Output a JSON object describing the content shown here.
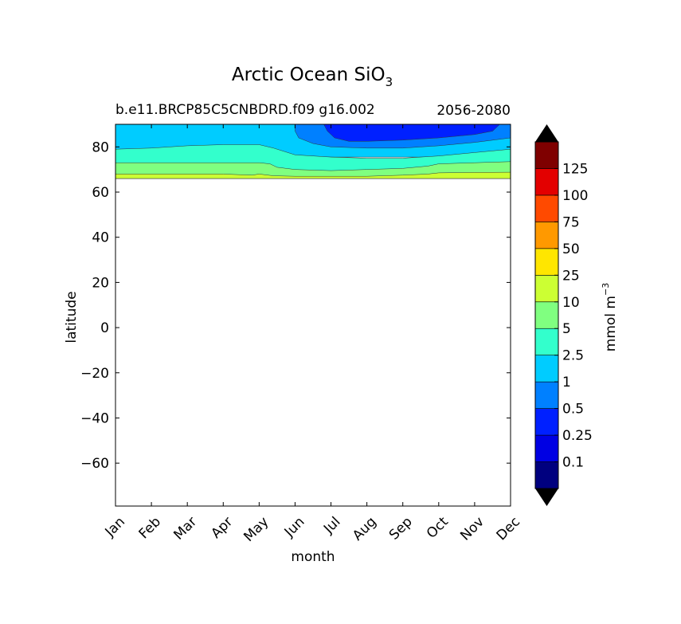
{
  "chart_data": {
    "type": "contour",
    "title": "Arctic Ocean SiO",
    "title_subscript": "3",
    "subtitle_left": "b.e11.BRCP85C5CNBDRD.f09 g16.002",
    "subtitle_right": "2056-2080",
    "xlabel": "month",
    "ylabel": "latitude",
    "months": [
      "Jan",
      "Feb",
      "Mar",
      "Apr",
      "May",
      "Jun",
      "Jul",
      "Aug",
      "Sep",
      "Oct",
      "Nov",
      "Dec"
    ],
    "ylim": [
      -79,
      90
    ],
    "yticks": [
      "80",
      "60",
      "40",
      "20",
      "0",
      "−20",
      "−40",
      "−60"
    ],
    "ytick_values": [
      80,
      60,
      40,
      20,
      0,
      -20,
      -40,
      -60
    ],
    "grid": false,
    "colorbar": {
      "label": "mmol m",
      "label_superscript": "−3",
      "extend": "both",
      "tick_labels": [
        "0.1",
        "0.25",
        "0.5",
        "1",
        "2.5",
        "5",
        "10",
        "25",
        "50",
        "75",
        "100",
        "125"
      ],
      "colors": [
        "#00007f",
        "#0000e3",
        "#0020ff",
        "#0080ff",
        "#00ccff",
        "#33ffcc",
        "#80ff80",
        "#ccff33",
        "#ffe600",
        "#ff9900",
        "#ff4a00",
        "#e30000",
        "#7f0000"
      ],
      "under_color": "#000000",
      "over_color": "#000000"
    },
    "regions": [
      {
        "value_band": "1-2.5",
        "color": "#00ccff",
        "points": [
          [
            0,
            90
          ],
          [
            11,
            90
          ],
          [
            11,
            75.5
          ],
          [
            0,
            75.5
          ]
        ]
      },
      {
        "value_band": "2.5-5",
        "color": "#33ffcc",
        "points": [
          [
            0,
            79
          ],
          [
            1,
            79.5
          ],
          [
            2,
            80.5
          ],
          [
            3,
            81
          ],
          [
            4,
            81
          ],
          [
            4.4,
            79.5
          ],
          [
            5,
            76.5
          ],
          [
            6,
            75.5
          ],
          [
            7,
            75
          ],
          [
            8,
            75
          ],
          [
            9,
            76
          ],
          [
            10,
            77.5
          ],
          [
            11,
            79
          ],
          [
            11,
            66
          ],
          [
            0,
            66
          ]
        ]
      },
      {
        "value_band": "5-10",
        "color": "#80ff80",
        "points": [
          [
            0,
            73
          ],
          [
            4,
            73
          ],
          [
            4.3,
            72.5
          ],
          [
            4.5,
            71
          ],
          [
            5,
            70
          ],
          [
            6,
            69.5
          ],
          [
            7,
            70
          ],
          [
            8,
            70.5
          ],
          [
            8.7,
            71.5
          ],
          [
            9,
            72.5
          ],
          [
            10,
            73
          ],
          [
            11,
            73.5
          ],
          [
            11,
            66
          ],
          [
            0,
            66
          ]
        ]
      },
      {
        "value_band": "10-25",
        "color": "#ccff33",
        "points": [
          [
            0,
            68
          ],
          [
            3,
            68
          ],
          [
            3.8,
            67.5
          ],
          [
            4,
            68
          ],
          [
            4.4,
            67.2
          ],
          [
            5,
            67
          ],
          [
            6,
            67
          ],
          [
            7,
            67
          ],
          [
            8,
            67.5
          ],
          [
            8.7,
            68
          ],
          [
            9,
            68.5
          ],
          [
            10,
            68.7
          ],
          [
            11,
            68.8
          ],
          [
            11,
            66
          ],
          [
            0,
            66
          ]
        ]
      },
      {
        "value_band": "0.5-1",
        "color": "#0080ff",
        "points": [
          [
            5,
            90
          ],
          [
            5,
            87
          ],
          [
            5.1,
            84
          ],
          [
            5.5,
            81.5
          ],
          [
            6,
            80
          ],
          [
            7,
            79.5
          ],
          [
            8,
            79.5
          ],
          [
            9,
            80.5
          ],
          [
            10,
            82
          ],
          [
            11,
            84
          ],
          [
            11,
            90
          ]
        ]
      },
      {
        "value_band": "0.25-0.5",
        "color": "#0020ff",
        "points": [
          [
            5.8,
            90
          ],
          [
            5.9,
            87
          ],
          [
            6.1,
            84
          ],
          [
            6.5,
            82.5
          ],
          [
            7,
            82.5
          ],
          [
            8,
            83
          ],
          [
            9,
            84
          ],
          [
            10,
            85.5
          ],
          [
            10.5,
            87
          ],
          [
            10.7,
            90
          ]
        ]
      }
    ],
    "ocean_lower_bound": 66
  }
}
